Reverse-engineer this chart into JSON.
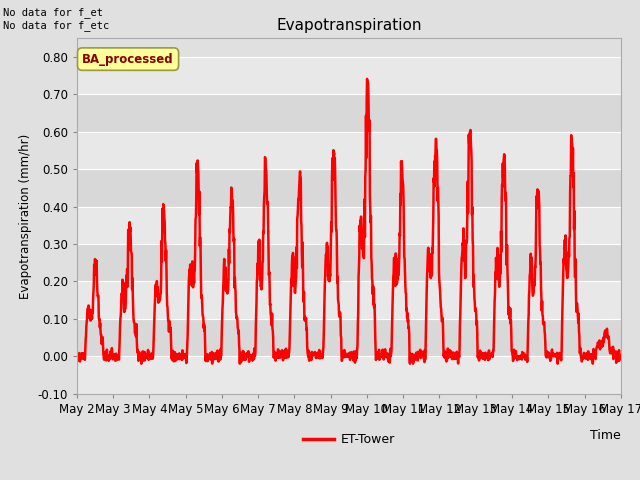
{
  "title": "Evapotranspiration",
  "xlabel": "Time",
  "ylabel": "Evapotranspiration (mm/hr)",
  "ylim": [
    -0.1,
    0.85
  ],
  "yticks": [
    -0.1,
    0.0,
    0.1,
    0.2,
    0.3,
    0.4,
    0.5,
    0.6,
    0.7,
    0.8
  ],
  "line_color": "red",
  "line_width": 1.8,
  "background_color": "#e0e0e0",
  "plot_bg_color": "#e0e0e0",
  "stripe_light": "#e8e8e8",
  "stripe_dark": "#d8d8d8",
  "legend_label": "ET-Tower",
  "annotation_text": "No data for f_et\nNo data for f_etc",
  "box_label": "BA_processed",
  "box_facecolor": "#ffff99",
  "box_edgecolor": "#999944",
  "grid_color": "white",
  "start_day": 2,
  "end_day": 17,
  "points_per_day": 96,
  "tick_label_fontsize": 8.5,
  "title_fontsize": 11
}
